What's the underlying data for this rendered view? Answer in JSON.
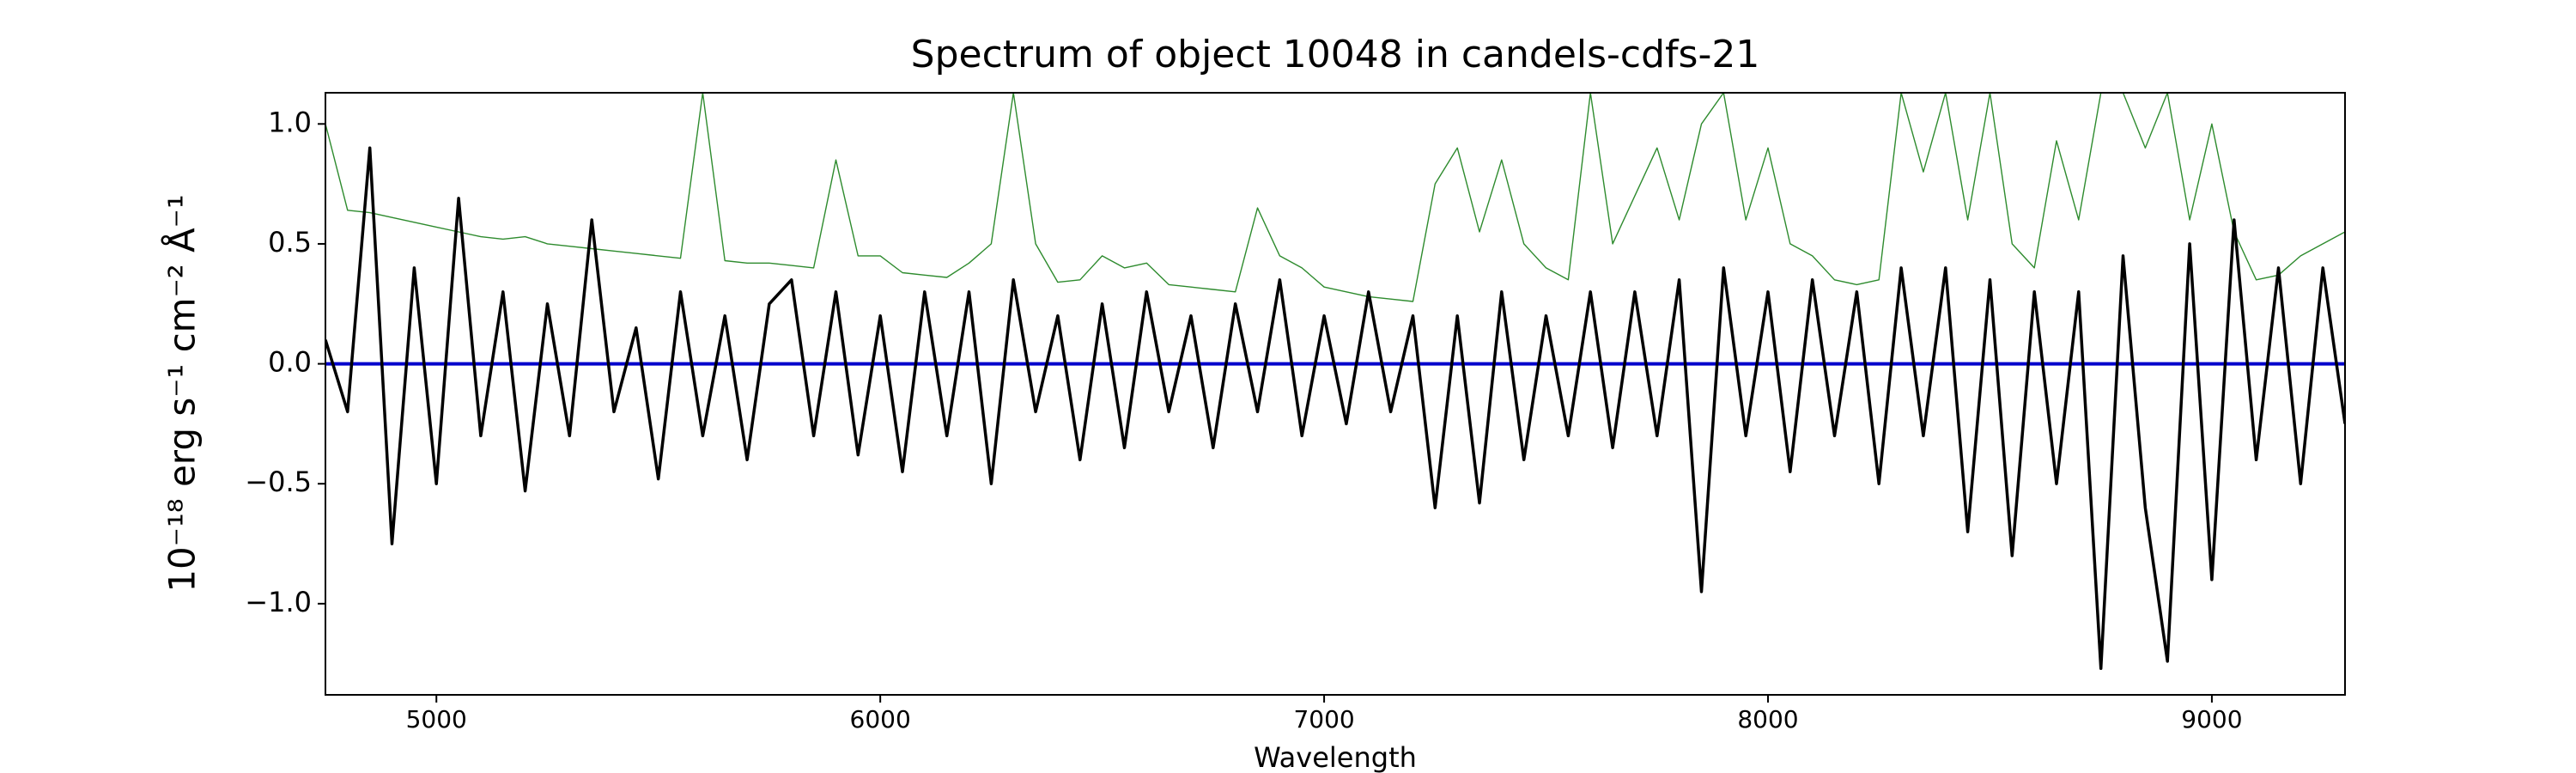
{
  "chart_data": {
    "type": "line",
    "title": "Spectrum of object 10048 in candels-cdfs-21",
    "xlabel": "Wavelength",
    "ylabel": "10⁻¹⁸ erg s⁻¹ cm⁻² Å⁻¹",
    "xlim": [
      4750,
      9300
    ],
    "ylim": [
      -1.38,
      1.13
    ],
    "xticks": [
      5000,
      6000,
      7000,
      8000,
      9000
    ],
    "yticks": [
      {
        "value": -1.0,
        "label": "−1.0"
      },
      {
        "value": -0.5,
        "label": "−0.5"
      },
      {
        "value": 0.0,
        "label": "0.0"
      },
      {
        "value": 0.5,
        "label": "0.5"
      },
      {
        "value": 1.0,
        "label": "1.0"
      }
    ],
    "x": [
      4750,
      4800,
      4850,
      4900,
      4950,
      5000,
      5050,
      5100,
      5150,
      5200,
      5250,
      5300,
      5350,
      5400,
      5450,
      5500,
      5550,
      5600,
      5650,
      5700,
      5750,
      5800,
      5850,
      5900,
      5950,
      6000,
      6050,
      6100,
      6150,
      6200,
      6250,
      6300,
      6350,
      6400,
      6450,
      6500,
      6550,
      6600,
      6650,
      6700,
      6750,
      6800,
      6850,
      6900,
      6950,
      7000,
      7050,
      7100,
      7150,
      7200,
      7250,
      7300,
      7350,
      7400,
      7450,
      7500,
      7550,
      7600,
      7650,
      7700,
      7750,
      7800,
      7850,
      7900,
      7950,
      8000,
      8050,
      8100,
      8150,
      8200,
      8250,
      8300,
      8350,
      8400,
      8450,
      8500,
      8550,
      8600,
      8650,
      8700,
      8750,
      8800,
      8850,
      8900,
      8950,
      9000,
      9050,
      9100,
      9150,
      9200,
      9250,
      9300
    ],
    "series": [
      {
        "color": "#2e8b2e",
        "width": 1.4,
        "values": [
          1.0,
          0.64,
          0.63,
          0.61,
          0.59,
          0.57,
          0.55,
          0.53,
          0.52,
          0.53,
          0.5,
          0.49,
          0.48,
          0.47,
          0.46,
          0.45,
          0.44,
          1.13,
          0.43,
          0.42,
          0.42,
          0.41,
          0.4,
          0.85,
          0.45,
          0.45,
          0.38,
          0.37,
          0.36,
          0.42,
          0.5,
          1.13,
          0.5,
          0.34,
          0.35,
          0.45,
          0.4,
          0.42,
          0.33,
          0.32,
          0.31,
          0.3,
          0.65,
          0.45,
          0.4,
          0.32,
          0.3,
          0.28,
          0.27,
          0.26,
          0.75,
          0.9,
          0.55,
          0.85,
          0.5,
          0.4,
          0.35,
          1.13,
          0.5,
          0.7,
          0.9,
          0.6,
          1.0,
          1.13,
          0.6,
          0.9,
          0.5,
          0.45,
          0.35,
          0.33,
          0.35,
          1.13,
          0.8,
          1.13,
          0.6,
          1.13,
          0.5,
          0.4,
          0.93,
          0.6,
          1.13,
          1.13,
          0.9,
          1.13,
          0.6,
          1.0,
          0.55,
          0.35,
          0.37,
          0.45,
          0.5,
          0.55
        ]
      },
      {
        "color": "#0000cc",
        "width": 4,
        "x": [
          4750,
          9300
        ],
        "values": [
          0,
          0
        ]
      },
      {
        "color": "#000000",
        "width": 3.5,
        "values": [
          0.1,
          -0.2,
          0.9,
          -0.75,
          0.4,
          -0.5,
          0.69,
          -0.3,
          0.3,
          -0.53,
          0.25,
          -0.3,
          0.6,
          -0.2,
          0.15,
          -0.48,
          0.3,
          -0.3,
          0.2,
          -0.4,
          0.25,
          0.35,
          -0.3,
          0.3,
          -0.38,
          0.2,
          -0.45,
          0.3,
          -0.3,
          0.3,
          -0.5,
          0.35,
          -0.2,
          0.2,
          -0.4,
          0.25,
          -0.35,
          0.3,
          -0.2,
          0.2,
          -0.35,
          0.25,
          -0.2,
          0.35,
          -0.3,
          0.2,
          -0.25,
          0.3,
          -0.2,
          0.2,
          -0.6,
          0.2,
          -0.58,
          0.3,
          -0.4,
          0.2,
          -0.3,
          0.3,
          -0.35,
          0.3,
          -0.3,
          0.35,
          -0.95,
          0.4,
          -0.3,
          0.3,
          -0.45,
          0.35,
          -0.3,
          0.3,
          -0.5,
          0.4,
          -0.3,
          0.4,
          -0.7,
          0.35,
          -0.8,
          0.3,
          -0.5,
          0.3,
          -1.27,
          0.45,
          -0.6,
          -1.24,
          0.5,
          -0.9,
          0.6,
          -0.4,
          0.4,
          -0.5,
          0.4,
          -0.25
        ]
      }
    ]
  }
}
